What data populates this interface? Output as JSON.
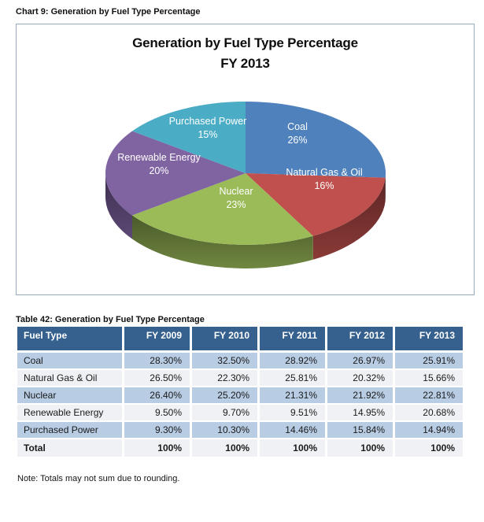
{
  "page": {
    "chart_caption": "Chart 9: Generation by Fuel Type Percentage",
    "table_caption": "Table 42: Generation by Fuel Type Percentage",
    "note": "Note: Totals may not sum due to rounding."
  },
  "theme": {
    "chart_border": "#97abc7",
    "table_header_bg": "#36618f",
    "table_header_text": "#ffffff",
    "row_blue": "#b8cce4",
    "row_light": "#eff1f4",
    "text": "#1a1a1a"
  },
  "chart_data": [
    {
      "type": "pie",
      "style": "3d",
      "title": "Generation by Fuel Type Percentage",
      "subtitle": "FY 2013",
      "labels": [
        "Coal",
        "Natural Gas & Oil",
        "Nuclear",
        "Renewable Energy",
        "Purchased Power"
      ],
      "values": [
        26,
        16,
        23,
        20,
        15
      ],
      "unit": "%",
      "colors": [
        "#4F81BD",
        "#C0504D",
        "#9BBB59",
        "#8064A2",
        "#4BACC6"
      ],
      "start_angle_deg": 0,
      "direction": "clockwise",
      "data_labels": "name and percent inside slices",
      "legend": "none"
    },
    {
      "type": "table",
      "title": "Table 42: Generation by Fuel Type Percentage",
      "columns": [
        "Fuel Type",
        "FY 2009",
        "FY 2010",
        "FY 2011",
        "FY 2012",
        "FY 2013"
      ],
      "rows": [
        [
          "Coal",
          "28.30%",
          "32.50%",
          "28.92%",
          "26.97%",
          "25.91%"
        ],
        [
          "Natural Gas & Oil",
          "26.50%",
          "22.30%",
          "25.81%",
          "20.32%",
          "15.66%"
        ],
        [
          "Nuclear",
          "26.40%",
          "25.20%",
          "21.31%",
          "21.92%",
          "22.81%"
        ],
        [
          "Renewable Energy",
          "9.50%",
          "9.70%",
          "9.51%",
          "14.95%",
          "20.68%"
        ],
        [
          "Purchased Power",
          "9.30%",
          "10.30%",
          "14.46%",
          "15.84%",
          "14.94%"
        ],
        [
          "Total",
          "100%",
          "100%",
          "100%",
          "100%",
          "100%"
        ]
      ],
      "bold_rows": [
        "Total"
      ]
    }
  ]
}
